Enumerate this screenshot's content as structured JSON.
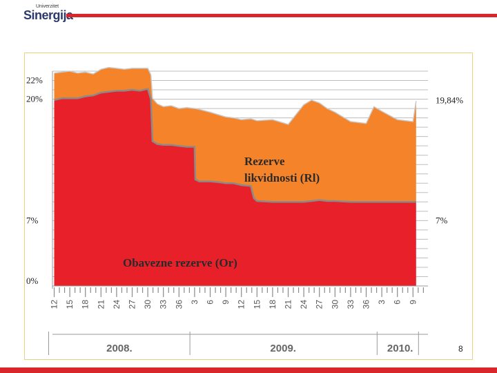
{
  "header": {
    "logo_small": "Univerzitet",
    "logo_main": "Sinergija",
    "accent_color": "#d8262b"
  },
  "page_number": "8",
  "chart_data": {
    "type": "area",
    "stacked": true,
    "title": "",
    "xlabel": "",
    "ylabel": "",
    "ylim": [
      0,
      23
    ],
    "grid": true,
    "colors": {
      "Obavezne rezerve (Or)": "#e8202a",
      "Rezerve likvidnosti (Rl)": "#f5832a",
      "grid": "#bdbdbd",
      "edge": "#8a8a8a"
    },
    "tick_labels": [
      "12",
      "15",
      "18",
      "21",
      "24",
      "27",
      "30",
      "33",
      "36",
      "3",
      "6",
      "9",
      "12",
      "15",
      "18",
      "21",
      "24",
      "27",
      "30",
      "33",
      "36",
      "3",
      "6",
      "9"
    ],
    "year_labels": [
      {
        "label": "2008.",
        "start": 0,
        "end": 8
      },
      {
        "label": "2009.",
        "start": 9,
        "end": 20
      },
      {
        "label": "2010.",
        "start": 21,
        "end": 23
      }
    ],
    "series": [
      {
        "name": "Obavezne rezerve (Or)",
        "label_lines": [
          "Obavezne rezerve (Or)"
        ],
        "values": [
          [
            0,
            19.9
          ],
          [
            0.5,
            20.1
          ],
          [
            1,
            20.1
          ],
          [
            1.5,
            20.1
          ],
          [
            2,
            20.3
          ],
          [
            2.5,
            20.4
          ],
          [
            3,
            20.7
          ],
          [
            3.5,
            20.8
          ],
          [
            4,
            20.9
          ],
          [
            4.5,
            20.9
          ],
          [
            5,
            21
          ],
          [
            5.5,
            20.9
          ],
          [
            6,
            21.1
          ],
          [
            6.2,
            20
          ],
          [
            6.3,
            15.5
          ],
          [
            6.6,
            15.2
          ],
          [
            7,
            15.1
          ],
          [
            7.5,
            15.1
          ],
          [
            8,
            15
          ],
          [
            8.5,
            14.9
          ],
          [
            9,
            14.9
          ],
          [
            9.05,
            11.4
          ],
          [
            9.3,
            11.2
          ],
          [
            10,
            11.2
          ],
          [
            10.6,
            11.1
          ],
          [
            11,
            11
          ],
          [
            11.5,
            11
          ],
          [
            12,
            10.8
          ],
          [
            12.6,
            10.7
          ],
          [
            12.8,
            9.4
          ],
          [
            13,
            9.1
          ],
          [
            14,
            9
          ],
          [
            15,
            9
          ],
          [
            16,
            9
          ],
          [
            16.5,
            9.1
          ],
          [
            17,
            9.2
          ],
          [
            17.5,
            9.1
          ],
          [
            18,
            9.1
          ],
          [
            19,
            9
          ],
          [
            20,
            9
          ],
          [
            20.5,
            9
          ],
          [
            21,
            9
          ],
          [
            22,
            9
          ],
          [
            23,
            9
          ],
          [
            23.2,
            9
          ]
        ]
      },
      {
        "name": "Rezerve likvidnosti (Rl)",
        "label_lines": [
          "Rezerve",
          "likvidnosti (Rl)"
        ],
        "values": [
          [
            0,
            2.9
          ],
          [
            0.5,
            2.8
          ],
          [
            1,
            2.9
          ],
          [
            1.5,
            2.7
          ],
          [
            2,
            2.6
          ],
          [
            2.5,
            2.3
          ],
          [
            3,
            2.5
          ],
          [
            3.5,
            2.6
          ],
          [
            4,
            2.4
          ],
          [
            4.5,
            2.3
          ],
          [
            5,
            2.3
          ],
          [
            5.5,
            2.4
          ],
          [
            6,
            2.2
          ],
          [
            6.2,
            2.6
          ],
          [
            6.3,
            4.6
          ],
          [
            6.6,
            4.3
          ],
          [
            7,
            4.1
          ],
          [
            7.5,
            4.2
          ],
          [
            8,
            4
          ],
          [
            8.5,
            4.2
          ],
          [
            9,
            4.1
          ],
          [
            9.05,
            7.6
          ],
          [
            9.3,
            7.7
          ],
          [
            10,
            7.4
          ],
          [
            10.6,
            7.2
          ],
          [
            11,
            7.1
          ],
          [
            11.5,
            7
          ],
          [
            12,
            7
          ],
          [
            12.6,
            7.2
          ],
          [
            12.8,
            8.4
          ],
          [
            13,
            8.6
          ],
          [
            14,
            8.8
          ],
          [
            15,
            8.3
          ],
          [
            16,
            10.4
          ],
          [
            16.5,
            10.8
          ],
          [
            17,
            10.4
          ],
          [
            17.5,
            9.9
          ],
          [
            18,
            9.5
          ],
          [
            19,
            8.6
          ],
          [
            20,
            8.4
          ],
          [
            20.5,
            10.2
          ],
          [
            21,
            9.7
          ],
          [
            22,
            8.8
          ],
          [
            23,
            8.6
          ],
          [
            23.2,
            10.8
          ]
        ]
      }
    ],
    "left_labels": [
      {
        "text": "22%",
        "value": 22
      },
      {
        "text": "20%",
        "value": 20
      },
      {
        "text": "7%",
        "value": 7
      },
      {
        "text": "0%",
        "value": 0
      }
    ],
    "right_labels": [
      {
        "text": "19,84%",
        "value": 19.84
      },
      {
        "text": "7%",
        "value": 7
      }
    ]
  }
}
